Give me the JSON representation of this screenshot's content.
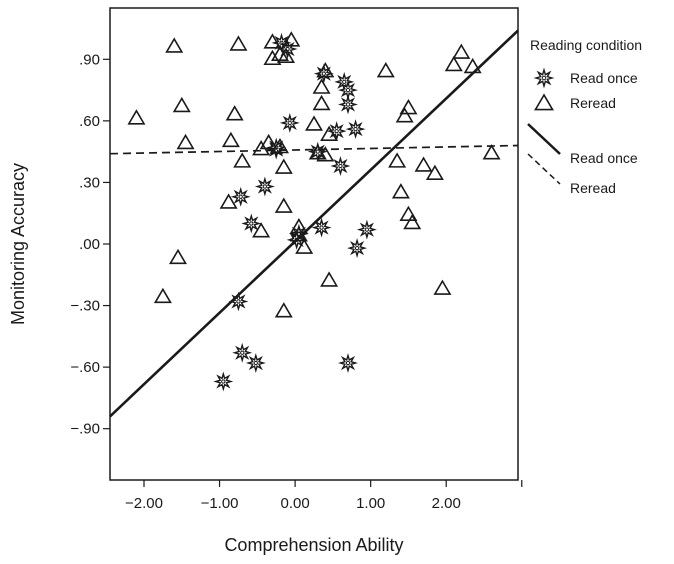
{
  "chart_data": {
    "type": "scatter",
    "title": "",
    "xlabel": "Comprehension Ability",
    "ylabel": "Monitoring Accuracy",
    "xlim": [
      -2.45,
      2.95
    ],
    "ylim": [
      -1.15,
      1.15
    ],
    "x_ticks": [
      -2.0,
      -1.0,
      0.0,
      1.0,
      2.0,
      3.0
    ],
    "x_tick_labels": [
      "−2.00",
      "−1.00",
      "0.00",
      "1.00",
      "2.00",
      ""
    ],
    "y_ticks": [
      0.9,
      0.6,
      0.3,
      0.0,
      -0.3,
      -0.6,
      -0.9
    ],
    "y_tick_labels": [
      ".90",
      ".60",
      ".30",
      ".00",
      "−.30",
      "−.60",
      "−.90"
    ],
    "grid": false,
    "legend": {
      "title": "Reading condition",
      "position": "right",
      "entries": [
        {
          "label": "Read once",
          "kind": "marker",
          "series": "Read once"
        },
        {
          "label": "Reread",
          "kind": "marker",
          "series": "Reread"
        },
        {
          "label": "Read once",
          "kind": "line",
          "series": "Read once"
        },
        {
          "label": "Reread",
          "kind": "line",
          "series": "Reread"
        }
      ]
    },
    "series": [
      {
        "name": "Read once",
        "marker": "starburst",
        "points": [
          [
            -0.18,
            0.98
          ],
          [
            -0.1,
            0.95
          ],
          [
            0.38,
            0.83
          ],
          [
            0.55,
            0.55
          ],
          [
            0.65,
            0.79
          ],
          [
            0.7,
            0.75
          ],
          [
            0.7,
            0.68
          ],
          [
            0.8,
            0.56
          ],
          [
            0.6,
            0.38
          ],
          [
            0.3,
            0.45
          ],
          [
            -0.25,
            0.46
          ],
          [
            -0.07,
            0.59
          ],
          [
            -0.72,
            0.23
          ],
          [
            -0.4,
            0.28
          ],
          [
            -0.58,
            0.1
          ],
          [
            -0.25,
            0.47
          ],
          [
            0.05,
            0.05
          ],
          [
            0.02,
            0.02
          ],
          [
            0.35,
            0.08
          ],
          [
            0.95,
            0.07
          ],
          [
            0.82,
            -0.02
          ],
          [
            -0.75,
            -0.28
          ],
          [
            -0.7,
            -0.53
          ],
          [
            -0.52,
            -0.58
          ],
          [
            -0.95,
            -0.67
          ],
          [
            0.7,
            -0.58
          ]
        ]
      },
      {
        "name": "Reread",
        "marker": "triangle",
        "points": [
          [
            -2.1,
            0.61
          ],
          [
            -1.6,
            0.96
          ],
          [
            -1.5,
            0.67
          ],
          [
            -1.45,
            0.49
          ],
          [
            -1.55,
            -0.07
          ],
          [
            -1.75,
            -0.26
          ],
          [
            -0.75,
            0.97
          ],
          [
            -0.8,
            0.63
          ],
          [
            -0.85,
            0.5
          ],
          [
            -0.7,
            0.4
          ],
          [
            -0.88,
            0.2
          ],
          [
            -0.45,
            0.06
          ],
          [
            -0.35,
            0.49
          ],
          [
            -0.45,
            0.46
          ],
          [
            -0.3,
            0.98
          ],
          [
            -0.3,
            0.9
          ],
          [
            -0.2,
            0.92
          ],
          [
            -0.12,
            0.91
          ],
          [
            -0.05,
            0.99
          ],
          [
            -0.15,
            0.37
          ],
          [
            -0.15,
            0.18
          ],
          [
            -0.2,
            0.47
          ],
          [
            0.25,
            0.58
          ],
          [
            0.3,
            0.44
          ],
          [
            0.35,
            0.76
          ],
          [
            0.35,
            0.68
          ],
          [
            0.4,
            0.84
          ],
          [
            0.45,
            0.53
          ],
          [
            0.4,
            0.43
          ],
          [
            1.2,
            0.84
          ],
          [
            1.5,
            0.66
          ],
          [
            1.45,
            0.62
          ],
          [
            1.35,
            0.4
          ],
          [
            1.4,
            0.25
          ],
          [
            1.5,
            0.14
          ],
          [
            1.55,
            0.1
          ],
          [
            1.7,
            0.38
          ],
          [
            1.85,
            0.34
          ],
          [
            0.05,
            0.08
          ],
          [
            0.05,
            0.04
          ],
          [
            0.12,
            -0.02
          ],
          [
            0.45,
            -0.18
          ],
          [
            1.95,
            -0.22
          ],
          [
            -0.15,
            -0.33
          ],
          [
            2.1,
            0.87
          ],
          [
            2.2,
            0.93
          ],
          [
            2.35,
            0.86
          ],
          [
            2.6,
            0.44
          ]
        ]
      }
    ],
    "fit_lines": [
      {
        "series": "Read once",
        "style": "solid",
        "points": [
          [
            -2.45,
            -0.84
          ],
          [
            2.95,
            1.04
          ]
        ]
      },
      {
        "series": "Reread",
        "style": "dashed",
        "points": [
          [
            -2.45,
            0.44
          ],
          [
            2.95,
            0.48
          ]
        ]
      }
    ],
    "colors": {
      "ink": "#1a1a1a"
    }
  }
}
